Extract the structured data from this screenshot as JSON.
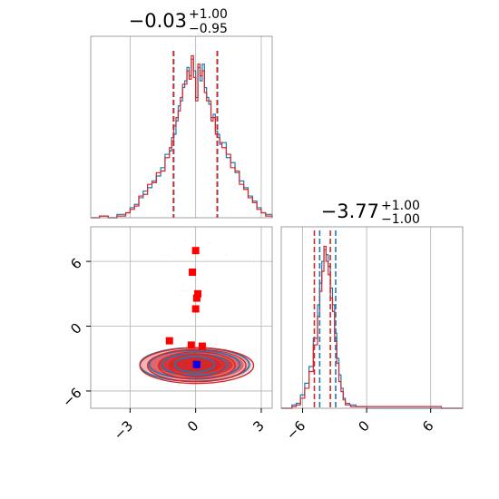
{
  "chart_data": {
    "type": "corner",
    "colors": {
      "series_a": "#1f77b4",
      "series_b": "#d62728",
      "marker_a": "#ff0000",
      "marker_b": "#0000ff",
      "grid": "#b0b0b0"
    },
    "series": [
      {
        "name": "",
        "color": "#1f77b4"
      },
      {
        "name": "",
        "color": "#d62728"
      }
    ],
    "param1": {
      "title": {
        "median": "−0.03",
        "plus": "+1.00",
        "minus": "−0.95"
      },
      "xlim": [
        -4.8,
        3.5
      ],
      "quantiles_blue": [
        -1.0,
        1.0
      ],
      "quantiles_red": [
        -1.02,
        0.98
      ],
      "hist_blue": [
        [
          -4.8,
          0
        ],
        [
          -4.4,
          0.01
        ],
        [
          -4.0,
          0.0
        ],
        [
          -3.6,
          0.02
        ],
        [
          -3.2,
          0.03
        ],
        [
          -3.0,
          0.06
        ],
        [
          -2.8,
          0.08
        ],
        [
          -2.6,
          0.12
        ],
        [
          -2.4,
          0.16
        ],
        [
          -2.2,
          0.18
        ],
        [
          -2.0,
          0.22
        ],
        [
          -1.8,
          0.25
        ],
        [
          -1.6,
          0.3
        ],
        [
          -1.4,
          0.38
        ],
        [
          -1.2,
          0.4
        ],
        [
          -1.1,
          0.48
        ],
        [
          -1.0,
          0.5
        ],
        [
          -0.9,
          0.58
        ],
        [
          -0.8,
          0.67
        ],
        [
          -0.7,
          0.7
        ],
        [
          -0.6,
          0.78
        ],
        [
          -0.5,
          0.82
        ],
        [
          -0.4,
          0.9
        ],
        [
          -0.3,
          0.85
        ],
        [
          -0.2,
          0.95
        ],
        [
          -0.1,
          0.88
        ],
        [
          0.0,
          0.72
        ],
        [
          0.1,
          0.9
        ],
        [
          0.2,
          0.82
        ],
        [
          0.3,
          0.92
        ],
        [
          0.4,
          0.78
        ],
        [
          0.5,
          0.72
        ],
        [
          0.6,
          0.68
        ],
        [
          0.7,
          0.6
        ],
        [
          0.8,
          0.62
        ],
        [
          0.9,
          0.52
        ],
        [
          1.0,
          0.5
        ],
        [
          1.1,
          0.44
        ],
        [
          1.2,
          0.45
        ],
        [
          1.4,
          0.36
        ],
        [
          1.6,
          0.33
        ],
        [
          1.8,
          0.27
        ],
        [
          2.0,
          0.22
        ],
        [
          2.2,
          0.18
        ],
        [
          2.4,
          0.13
        ],
        [
          2.6,
          0.1
        ],
        [
          2.8,
          0.06
        ],
        [
          3.0,
          0.03
        ],
        [
          3.2,
          0.02
        ],
        [
          3.5,
          0.0
        ]
      ],
      "hist_red": [
        [
          -4.8,
          0
        ],
        [
          -4.4,
          0.01
        ],
        [
          -4.0,
          0.0
        ],
        [
          -3.6,
          0.01
        ],
        [
          -3.2,
          0.03
        ],
        [
          -3.0,
          0.05
        ],
        [
          -2.8,
          0.07
        ],
        [
          -2.6,
          0.13
        ],
        [
          -2.4,
          0.14
        ],
        [
          -2.2,
          0.2
        ],
        [
          -2.0,
          0.21
        ],
        [
          -1.8,
          0.27
        ],
        [
          -1.6,
          0.28
        ],
        [
          -1.4,
          0.36
        ],
        [
          -1.2,
          0.42
        ],
        [
          -1.1,
          0.46
        ],
        [
          -1.0,
          0.55
        ],
        [
          -0.9,
          0.6
        ],
        [
          -0.8,
          0.64
        ],
        [
          -0.7,
          0.72
        ],
        [
          -0.6,
          0.8
        ],
        [
          -0.5,
          0.8
        ],
        [
          -0.4,
          0.88
        ],
        [
          -0.3,
          0.83
        ],
        [
          -0.2,
          0.97
        ],
        [
          -0.1,
          0.84
        ],
        [
          0.0,
          0.7
        ],
        [
          0.1,
          0.92
        ],
        [
          0.2,
          0.85
        ],
        [
          0.3,
          0.88
        ],
        [
          0.4,
          0.75
        ],
        [
          0.5,
          0.7
        ],
        [
          0.6,
          0.7
        ],
        [
          0.7,
          0.58
        ],
        [
          0.8,
          0.6
        ],
        [
          0.9,
          0.5
        ],
        [
          1.0,
          0.48
        ],
        [
          1.1,
          0.45
        ],
        [
          1.2,
          0.42
        ],
        [
          1.4,
          0.38
        ],
        [
          1.6,
          0.3
        ],
        [
          1.8,
          0.28
        ],
        [
          2.0,
          0.2
        ],
        [
          2.2,
          0.17
        ],
        [
          2.4,
          0.12
        ],
        [
          2.6,
          0.09
        ],
        [
          2.8,
          0.05
        ],
        [
          3.0,
          0.03
        ],
        [
          3.2,
          0.01
        ],
        [
          3.5,
          0.0
        ]
      ]
    },
    "param2": {
      "title": {
        "median": "−3.77",
        "plus": "+1.00",
        "minus": "−1.00"
      },
      "xlim": [
        -8.0,
        9.0
      ],
      "xticks": [
        -6,
        0,
        6
      ],
      "quantiles_blue": [
        -4.4,
        -2.9
      ],
      "quantiles_red": [
        -4.9,
        -3.4
      ],
      "hist_blue": [
        [
          -8.0,
          0
        ],
        [
          -7.0,
          0.02
        ],
        [
          -6.6,
          0.03
        ],
        [
          -6.2,
          0.08
        ],
        [
          -5.8,
          0.15
        ],
        [
          -5.4,
          0.25
        ],
        [
          -5.0,
          0.42
        ],
        [
          -4.6,
          0.62
        ],
        [
          -4.4,
          0.75
        ],
        [
          -4.2,
          0.88
        ],
        [
          -4.0,
          0.95
        ],
        [
          -3.8,
          0.92
        ],
        [
          -3.6,
          0.85
        ],
        [
          -3.4,
          0.72
        ],
        [
          -3.2,
          0.62
        ],
        [
          -3.0,
          0.45
        ],
        [
          -2.8,
          0.3
        ],
        [
          -2.6,
          0.2
        ],
        [
          -2.4,
          0.12
        ],
        [
          -2.2,
          0.06
        ],
        [
          -2.0,
          0.03
        ],
        [
          -1.6,
          0.02
        ],
        [
          -1.0,
          0.01
        ],
        [
          0.0,
          0.0
        ],
        [
          9.0,
          0
        ]
      ],
      "hist_red": [
        [
          -8.0,
          0
        ],
        [
          -7.0,
          0.01
        ],
        [
          -6.6,
          0.02
        ],
        [
          -6.2,
          0.06
        ],
        [
          -5.8,
          0.12
        ],
        [
          -5.4,
          0.22
        ],
        [
          -5.0,
          0.38
        ],
        [
          -4.6,
          0.55
        ],
        [
          -4.4,
          0.7
        ],
        [
          -4.2,
          0.82
        ],
        [
          -4.0,
          0.97
        ],
        [
          -3.8,
          0.88
        ],
        [
          -3.6,
          0.8
        ],
        [
          -3.4,
          0.66
        ],
        [
          -3.2,
          0.58
        ],
        [
          -3.0,
          0.4
        ],
        [
          -2.8,
          0.27
        ],
        [
          -2.6,
          0.16
        ],
        [
          -2.4,
          0.1
        ],
        [
          -2.2,
          0.05
        ],
        [
          -2.0,
          0.02
        ],
        [
          -1.5,
          0.01
        ],
        [
          -1.0,
          0.01
        ],
        [
          5.0,
          0.01
        ],
        [
          6.0,
          0.01
        ],
        [
          7.0,
          0.0
        ],
        [
          9.0,
          0
        ]
      ]
    },
    "scatter": {
      "xlim": [
        -4.8,
        3.5
      ],
      "ylim": [
        -7.6,
        9.2
      ],
      "xticks": [
        -3,
        0,
        3
      ],
      "yticks": [
        -6,
        0,
        6
      ],
      "grid": true,
      "contour_center": [
        0.0,
        -3.6
      ],
      "contour_levels": [
        [
          2.55,
          1.6
        ],
        [
          2.2,
          1.35
        ],
        [
          1.7,
          1.05
        ],
        [
          1.2,
          0.75
        ]
      ],
      "red_markers": [
        [
          0.0,
          7.0
        ],
        [
          -0.15,
          5.0
        ],
        [
          0.1,
          3.0
        ],
        [
          0.05,
          2.6
        ],
        [
          0.0,
          1.6
        ],
        [
          -1.2,
          -1.35
        ],
        [
          -0.2,
          -1.75
        ],
        [
          0.3,
          -1.85
        ],
        [
          0.0,
          -3.5
        ]
      ],
      "blue_markers": [
        [
          0.05,
          -3.55
        ]
      ]
    }
  }
}
